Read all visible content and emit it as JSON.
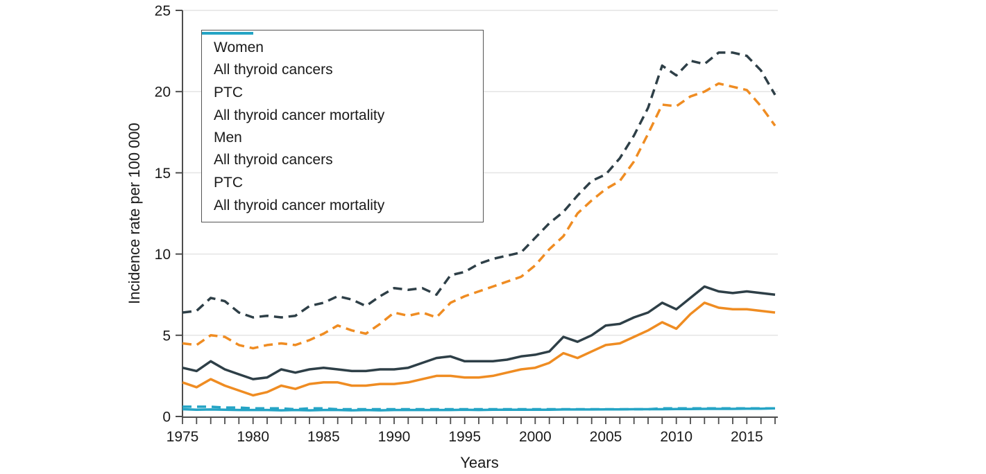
{
  "colors": {
    "dark": "#2e3f47",
    "orange": "#ef8c22",
    "teal": "#25a4c5",
    "grid": "#e4e4e4",
    "axis": "#4d4d4d",
    "text": "#1a1a1a",
    "legend_border": "#545454"
  },
  "legend": {
    "groups": [
      {
        "header": "Women",
        "items": [
          {
            "label": "All thyroid cancers",
            "color": "#2e3f47",
            "line_style": "dashed"
          },
          {
            "label": "PTC",
            "color": "#ef8c22",
            "line_style": "dashed"
          },
          {
            "label": "All thyroid cancer mortality",
            "color": "#25a4c5",
            "line_style": "dashed"
          }
        ]
      },
      {
        "header": "Men",
        "items": [
          {
            "label": "All thyroid cancers",
            "color": "#2e3f47",
            "line_style": "solid"
          },
          {
            "label": "PTC",
            "color": "#ef8c22",
            "line_style": "solid"
          },
          {
            "label": "All thyroid cancer mortality",
            "color": "#25a4c5",
            "line_style": "solid"
          }
        ]
      }
    ]
  },
  "chart_data": {
    "type": "line",
    "title": "",
    "xlabel": "Years",
    "ylabel": "Incidence rate per 100 000",
    "xlim": [
      1975,
      2017
    ],
    "ylim": [
      0,
      25
    ],
    "y_ticks": [
      0,
      5,
      10,
      15,
      20,
      25
    ],
    "x_tick_labels": [
      1975,
      1980,
      1985,
      1990,
      1995,
      2000,
      2005,
      2010,
      2015
    ],
    "x_minor_tick_step": 1,
    "grid": "horizontal gridlines at 5, 10, 15, 20, 25",
    "legend_position": "upper left, boxed",
    "x": [
      1975,
      1976,
      1977,
      1978,
      1979,
      1980,
      1981,
      1982,
      1983,
      1984,
      1985,
      1986,
      1987,
      1988,
      1989,
      1990,
      1991,
      1992,
      1993,
      1994,
      1995,
      1996,
      1997,
      1998,
      1999,
      2000,
      2001,
      2002,
      2003,
      2004,
      2005,
      2006,
      2007,
      2008,
      2009,
      2010,
      2011,
      2012,
      2013,
      2014,
      2015,
      2016,
      2017
    ],
    "series": [
      {
        "group": "Men",
        "name": "All thyroid cancer mortality",
        "line_style": "solid",
        "color": "#25a4c5",
        "values": [
          0.45,
          0.42,
          0.43,
          0.42,
          0.4,
          0.4,
          0.4,
          0.38,
          0.4,
          0.38,
          0.4,
          0.4,
          0.38,
          0.4,
          0.38,
          0.4,
          0.4,
          0.4,
          0.4,
          0.4,
          0.42,
          0.4,
          0.42,
          0.42,
          0.42,
          0.42,
          0.42,
          0.43,
          0.43,
          0.43,
          0.44,
          0.44,
          0.45,
          0.45,
          0.45,
          0.46,
          0.46,
          0.47,
          0.47,
          0.47,
          0.48,
          0.48,
          0.5
        ]
      },
      {
        "group": "Women",
        "name": "All thyroid cancer mortality",
        "line_style": "dashed",
        "color": "#25a4c5",
        "values": [
          0.6,
          0.6,
          0.6,
          0.55,
          0.55,
          0.5,
          0.5,
          0.5,
          0.45,
          0.5,
          0.5,
          0.45,
          0.45,
          0.45,
          0.45,
          0.45,
          0.45,
          0.45,
          0.45,
          0.45,
          0.45,
          0.45,
          0.45,
          0.45,
          0.45,
          0.45,
          0.45,
          0.45,
          0.45,
          0.45,
          0.45,
          0.45,
          0.45,
          0.45,
          0.5,
          0.5,
          0.5,
          0.5,
          0.5,
          0.5,
          0.5,
          0.5,
          0.5
        ]
      },
      {
        "group": "Men",
        "name": "PTC",
        "line_style": "solid",
        "color": "#ef8c22",
        "values": [
          2.1,
          1.8,
          2.3,
          1.9,
          1.6,
          1.3,
          1.5,
          1.9,
          1.7,
          2.0,
          2.1,
          2.1,
          1.9,
          1.9,
          2.0,
          2.0,
          2.1,
          2.3,
          2.5,
          2.5,
          2.4,
          2.4,
          2.5,
          2.7,
          2.9,
          3.0,
          3.3,
          3.9,
          3.6,
          4.0,
          4.4,
          4.5,
          4.9,
          5.3,
          5.8,
          5.4,
          6.3,
          7.0,
          6.7,
          6.6,
          6.6,
          6.5,
          6.4
        ]
      },
      {
        "group": "Men",
        "name": "All thyroid cancers",
        "line_style": "solid",
        "color": "#2e3f47",
        "values": [
          3.0,
          2.8,
          3.4,
          2.9,
          2.6,
          2.3,
          2.4,
          2.9,
          2.7,
          2.9,
          3.0,
          2.9,
          2.8,
          2.8,
          2.9,
          2.9,
          3.0,
          3.3,
          3.6,
          3.7,
          3.4,
          3.4,
          3.4,
          3.5,
          3.7,
          3.8,
          4.0,
          4.9,
          4.6,
          5.0,
          5.6,
          5.7,
          6.1,
          6.4,
          7.0,
          6.6,
          7.3,
          8.0,
          7.7,
          7.6,
          7.7,
          7.6,
          7.5
        ]
      },
      {
        "group": "Women",
        "name": "PTC",
        "line_style": "dashed",
        "color": "#ef8c22",
        "values": [
          4.5,
          4.4,
          5.0,
          4.9,
          4.4,
          4.2,
          4.4,
          4.5,
          4.4,
          4.7,
          5.1,
          5.6,
          5.3,
          5.1,
          5.7,
          6.4,
          6.2,
          6.4,
          6.1,
          7.0,
          7.4,
          7.7,
          8.0,
          8.3,
          8.6,
          9.3,
          10.3,
          11.1,
          12.5,
          13.3,
          14.0,
          14.5,
          15.7,
          17.4,
          19.2,
          19.1,
          19.7,
          20.0,
          20.5,
          20.3,
          20.1,
          19.1,
          17.9
        ]
      },
      {
        "group": "Women",
        "name": "All thyroid cancers",
        "line_style": "dashed",
        "color": "#2e3f47",
        "values": [
          6.4,
          6.5,
          7.3,
          7.1,
          6.4,
          6.1,
          6.2,
          6.1,
          6.2,
          6.8,
          7.0,
          7.4,
          7.2,
          6.8,
          7.4,
          7.9,
          7.8,
          7.9,
          7.5,
          8.7,
          8.9,
          9.4,
          9.7,
          9.9,
          10.1,
          11.0,
          11.9,
          12.6,
          13.6,
          14.5,
          14.9,
          15.9,
          17.3,
          19.0,
          21.6,
          21.0,
          21.9,
          21.7,
          22.4,
          22.4,
          22.2,
          21.3,
          19.8
        ]
      }
    ]
  }
}
